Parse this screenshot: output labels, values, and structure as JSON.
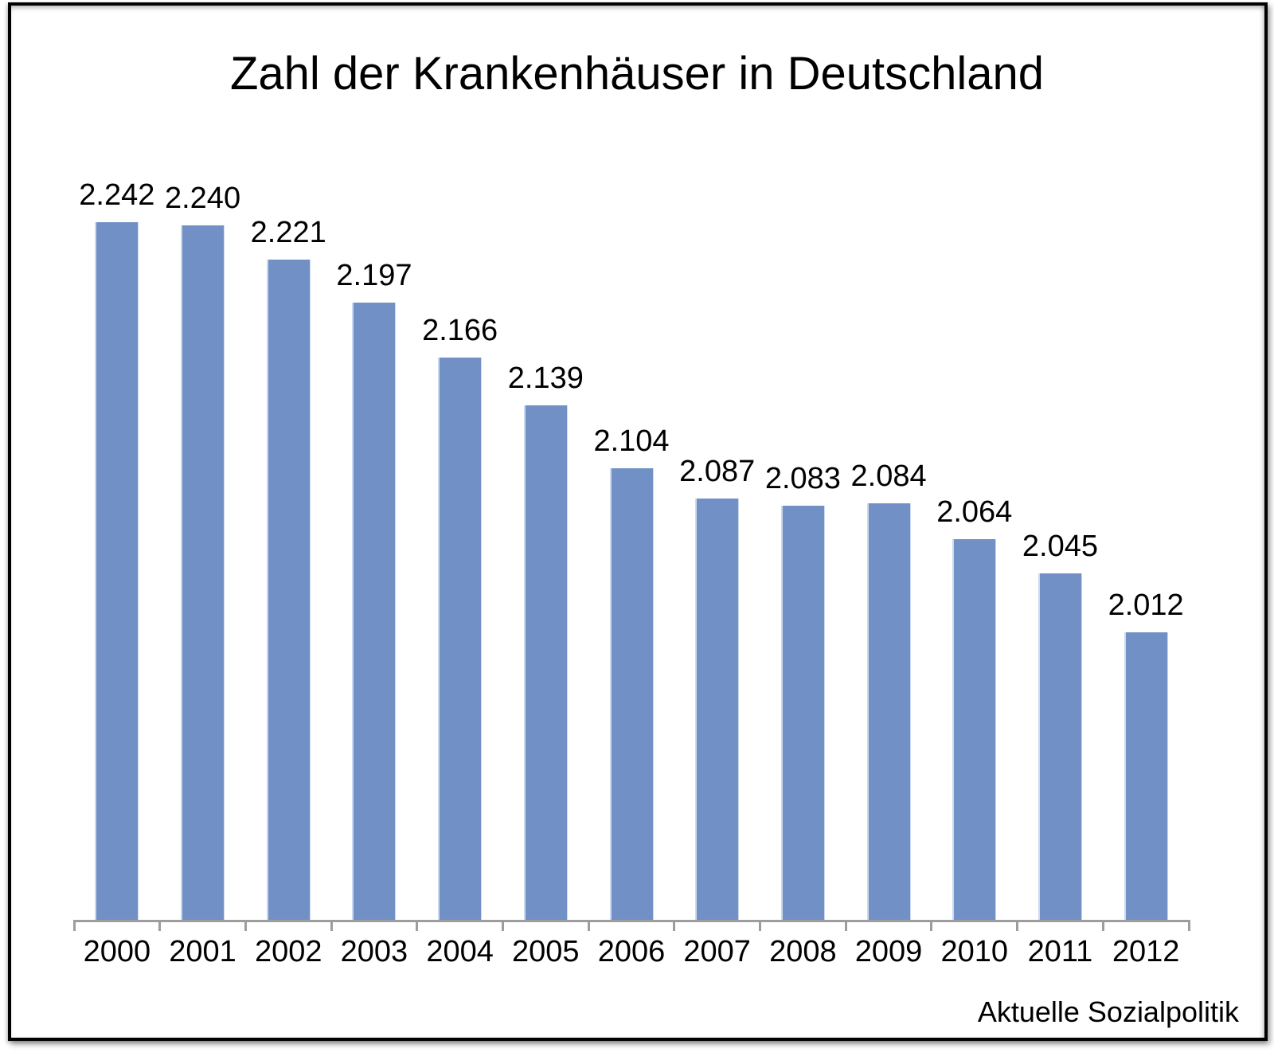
{
  "title": "Zahl der Krankenhäuser in Deutschland",
  "source_label": "Aktuelle Sozialpolitik",
  "colors": {
    "bar": "#7191C6",
    "bar_edge": "#CDD9EC",
    "axis": "#9D9D9D",
    "text": "#000000",
    "frame_border": "#000000",
    "frame_background": "#FFFFFF"
  },
  "chart_data": {
    "type": "bar",
    "title": "Zahl der Krankenhäuser in Deutschland",
    "categories": [
      "2000",
      "2001",
      "2002",
      "2003",
      "2004",
      "2005",
      "2006",
      "2007",
      "2008",
      "2009",
      "2010",
      "2011",
      "2012"
    ],
    "values": [
      2242,
      2240,
      2221,
      2197,
      2166,
      2139,
      2104,
      2087,
      2083,
      2084,
      2064,
      2045,
      2012
    ],
    "value_labels": [
      "2.242",
      "2.240",
      "2.221",
      "2.197",
      "2.166",
      "2.139",
      "2.104",
      "2.087",
      "2.083",
      "2.084",
      "2.064",
      "2.045",
      "2.012"
    ],
    "xlabel": "",
    "ylabel": "",
    "ylim": [
      1850,
      2242
    ],
    "grid": false,
    "legend": "none",
    "value_axis_visible": false,
    "data_labels_position": "above-bar",
    "source": "Aktuelle Sozialpolitik"
  }
}
